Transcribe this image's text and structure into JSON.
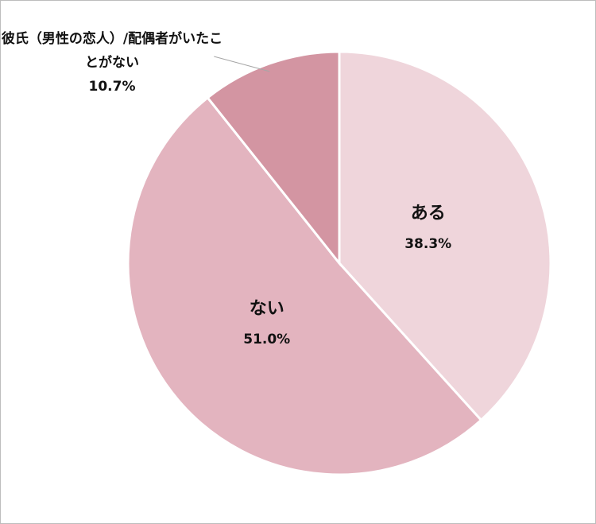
{
  "chart_data": {
    "type": "pie",
    "categories": [
      "ある",
      "ない",
      "彼氏（男性の恋人）/配偶者がいたことがない"
    ],
    "values": [
      38.3,
      51.0,
      10.7
    ],
    "value_labels": [
      "38.3%",
      "51.0%",
      "10.7%"
    ],
    "colors": [
      "#efd5db",
      "#e3b4bf",
      "#d395a2"
    ]
  }
}
